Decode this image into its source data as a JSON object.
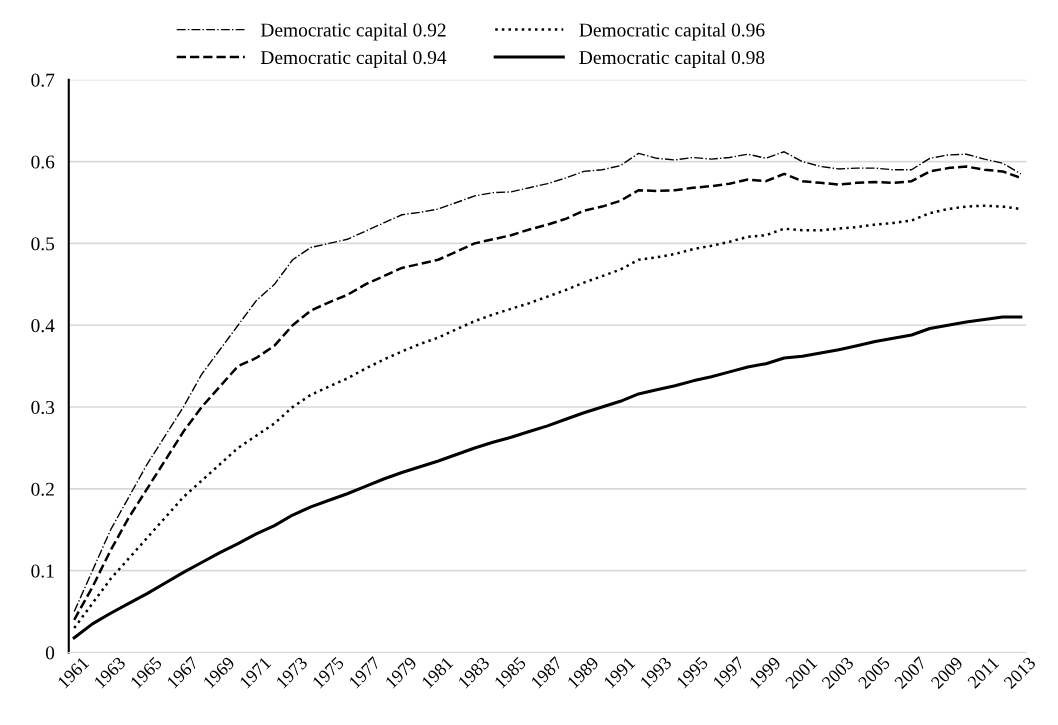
{
  "chart_data": {
    "type": "line",
    "categories": [
      "1961",
      null,
      "1963",
      null,
      "1965",
      null,
      "1967",
      null,
      "1969",
      null,
      "1971",
      null,
      "1973",
      null,
      "1975",
      null,
      "1977",
      null,
      "1979",
      null,
      "1981",
      null,
      "1983",
      null,
      "1985",
      null,
      "1987",
      null,
      "1989",
      null,
      "1991",
      null,
      "1993",
      null,
      "1995",
      null,
      "1997",
      null,
      "1999",
      null,
      "2001",
      null,
      "2003",
      null,
      "2005",
      null,
      "2007",
      null,
      "2009",
      null,
      "2011",
      null,
      "2013"
    ],
    "series": [
      {
        "name": "Democratic capital 0.92",
        "color": "#000000",
        "line_style": "dashdot",
        "values": [
          0.05,
          0.1,
          0.15,
          0.19,
          0.23,
          0.265,
          0.3,
          0.34,
          0.37,
          0.4,
          0.43,
          0.45,
          0.48,
          0.495,
          0.5,
          0.505,
          0.515,
          0.525,
          0.535,
          0.538,
          0.542,
          0.55,
          0.558,
          0.562,
          0.563,
          0.568,
          0.573,
          0.58,
          0.588,
          0.59,
          0.595,
          0.61,
          0.604,
          0.602,
          0.605,
          0.603,
          0.605,
          0.609,
          0.604,
          0.612,
          0.6,
          0.594,
          0.591,
          0.592,
          0.592,
          0.59,
          0.59,
          0.604,
          0.608,
          0.609,
          0.603,
          0.598,
          0.585
        ]
      },
      {
        "name": "Democratic capital 0.94",
        "color": "#000000",
        "line_style": "dashed",
        "values": [
          0.04,
          0.08,
          0.125,
          0.165,
          0.2,
          0.235,
          0.27,
          0.3,
          0.325,
          0.35,
          0.36,
          0.375,
          0.4,
          0.418,
          0.428,
          0.437,
          0.45,
          0.46,
          0.47,
          0.475,
          0.48,
          0.49,
          0.5,
          0.505,
          0.51,
          0.517,
          0.523,
          0.53,
          0.54,
          0.545,
          0.552,
          0.565,
          0.564,
          0.565,
          0.568,
          0.57,
          0.573,
          0.578,
          0.576,
          0.585,
          0.576,
          0.574,
          0.572,
          0.574,
          0.575,
          0.574,
          0.576,
          0.588,
          0.592,
          0.594,
          0.59,
          0.588,
          0.58
        ]
      },
      {
        "name": "Democratic capital 0.96",
        "color": "#000000",
        "line_style": "dotted",
        "values": [
          0.03,
          0.06,
          0.09,
          0.115,
          0.14,
          0.165,
          0.19,
          0.21,
          0.23,
          0.25,
          0.265,
          0.28,
          0.3,
          0.315,
          0.325,
          0.335,
          0.347,
          0.358,
          0.368,
          0.377,
          0.385,
          0.395,
          0.405,
          0.413,
          0.42,
          0.427,
          0.435,
          0.443,
          0.452,
          0.46,
          0.468,
          0.48,
          0.483,
          0.487,
          0.493,
          0.497,
          0.502,
          0.508,
          0.51,
          0.518,
          0.516,
          0.516,
          0.518,
          0.52,
          0.523,
          0.525,
          0.528,
          0.537,
          0.542,
          0.545,
          0.546,
          0.545,
          0.542
        ]
      },
      {
        "name": "Democratic capital 0.98",
        "color": "#000000",
        "line_style": "solid",
        "values": [
          0.018,
          0.035,
          0.048,
          0.06,
          0.072,
          0.085,
          0.098,
          0.11,
          0.122,
          0.133,
          0.145,
          0.155,
          0.168,
          0.178,
          0.186,
          0.194,
          0.203,
          0.212,
          0.22,
          0.227,
          0.234,
          0.242,
          0.25,
          0.257,
          0.263,
          0.27,
          0.277,
          0.285,
          0.293,
          0.3,
          0.307,
          0.316,
          0.321,
          0.326,
          0.332,
          0.337,
          0.343,
          0.349,
          0.353,
          0.36,
          0.362,
          0.366,
          0.37,
          0.375,
          0.38,
          0.384,
          0.388,
          0.396,
          0.4,
          0.404,
          0.407,
          0.41,
          0.41
        ]
      }
    ],
    "ylim": [
      0,
      0.7
    ],
    "yticks": [
      0,
      0.1,
      0.2,
      0.3,
      0.4,
      0.5,
      0.6,
      0.7
    ],
    "grid": "y",
    "legend": "top"
  }
}
